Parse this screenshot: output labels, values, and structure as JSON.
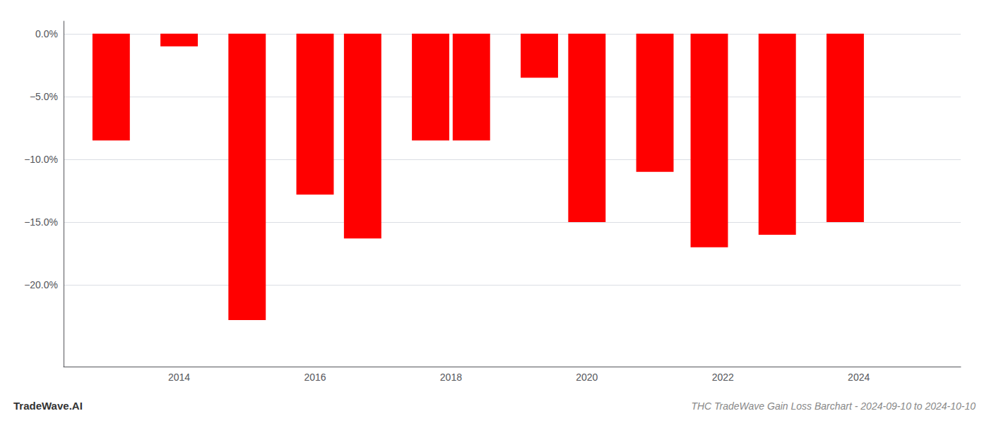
{
  "chart_data": {
    "type": "bar",
    "title": "THC TradeWave Gain Loss Barchart - 2024-09-10 to 2024-10-10",
    "annotations": [
      "TradeWave.AI"
    ],
    "x": [
      2013,
      2014,
      2015,
      2016,
      2016.7,
      2017.7,
      2018.3,
      2019.3,
      2020,
      2021,
      2021.8,
      2022.8,
      2023.8
    ],
    "values": [
      -0.085,
      -0.01,
      -0.228,
      -0.128,
      -0.163,
      -0.085,
      -0.085,
      -0.035,
      -0.15,
      -0.11,
      -0.17,
      -0.16,
      -0.15
    ],
    "color": "#ff0000",
    "xlim": [
      2012.3,
      2025.5
    ],
    "xticks": [
      2014,
      2016,
      2018,
      2020,
      2022,
      2024
    ],
    "ylim": [
      -0.265,
      0.01
    ],
    "yticks": [
      {
        "value": 0.0,
        "label": "0.0%"
      },
      {
        "value": -0.05,
        "label": "−5.0%"
      },
      {
        "value": -0.1,
        "label": "−10.0%"
      },
      {
        "value": -0.15,
        "label": "−15.0%"
      },
      {
        "value": -0.2,
        "label": "−20.0%"
      }
    ],
    "grid": true
  }
}
